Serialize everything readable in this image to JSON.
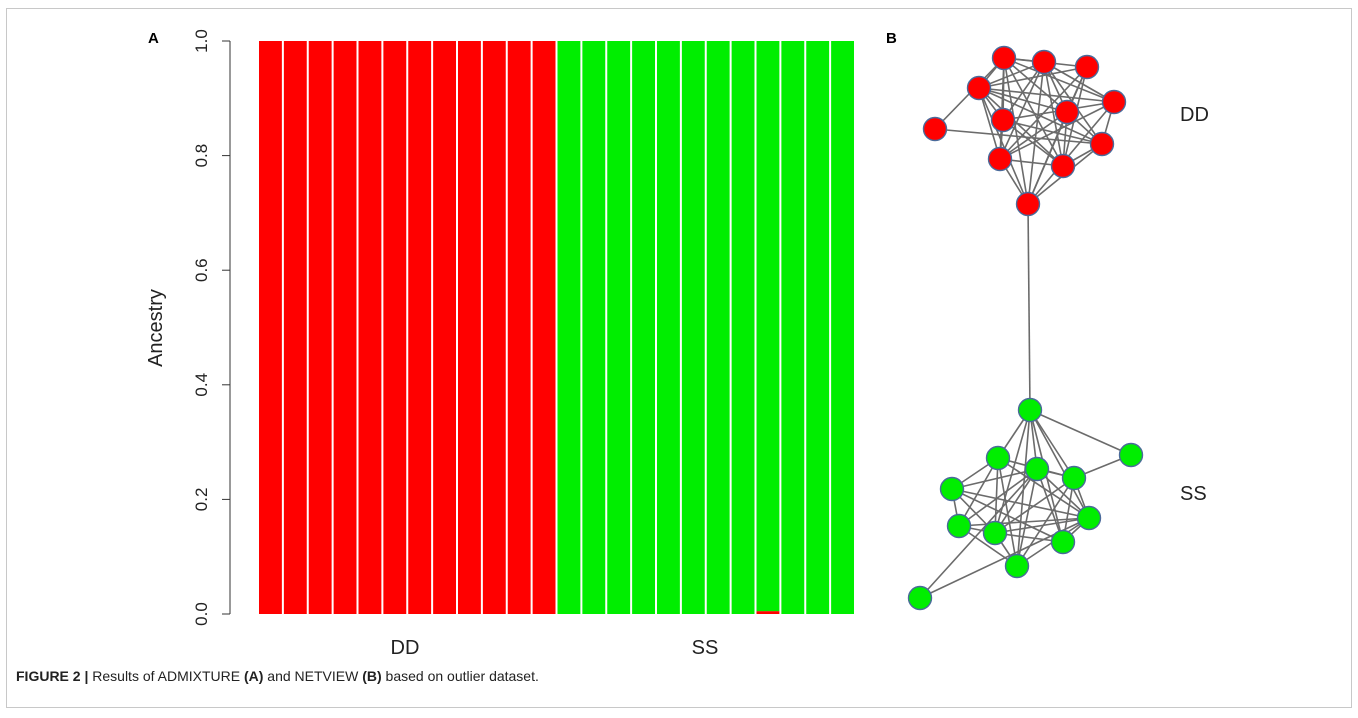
{
  "panels": {
    "a_label": "A",
    "b_label": "B"
  },
  "caption": {
    "figure": "FIGURE 2 |",
    "t1": " Results of ADMIXTURE ",
    "b1": "(A)",
    "t2": " and NETVIEW ",
    "b2": "(B)",
    "t3": " based on outlier dataset."
  },
  "chart_data": [
    {
      "type": "bar",
      "subtype": "stacked",
      "ylabel": "Ancestry",
      "ylim": [
        0,
        1
      ],
      "yticks": [
        "0.0",
        "0.2",
        "0.4",
        "0.6",
        "0.8",
        "1.0"
      ],
      "group_labels": [
        "DD",
        "SS"
      ],
      "individuals_per_group": 12,
      "series": [
        {
          "color": "#ff0000",
          "values": [
            1,
            1,
            1,
            1,
            1,
            1,
            1,
            1,
            1,
            1,
            1,
            1,
            0,
            0,
            0,
            0,
            0,
            0,
            0,
            0,
            0.005,
            0,
            0,
            0
          ]
        },
        {
          "color": "#00ee00",
          "values": [
            0,
            0,
            0,
            0,
            0,
            0,
            0,
            0,
            0,
            0,
            0,
            0,
            1,
            1,
            1,
            1,
            1,
            1,
            1,
            1,
            0.995,
            1,
            1,
            1
          ]
        }
      ]
    },
    {
      "type": "network",
      "clusters": [
        {
          "label": "DD",
          "color": "#ff0000",
          "node_count": 12
        },
        {
          "label": "SS",
          "color": "#00ee00",
          "node_count": 12
        }
      ],
      "edge_color": "#6b6b6b"
    }
  ]
}
